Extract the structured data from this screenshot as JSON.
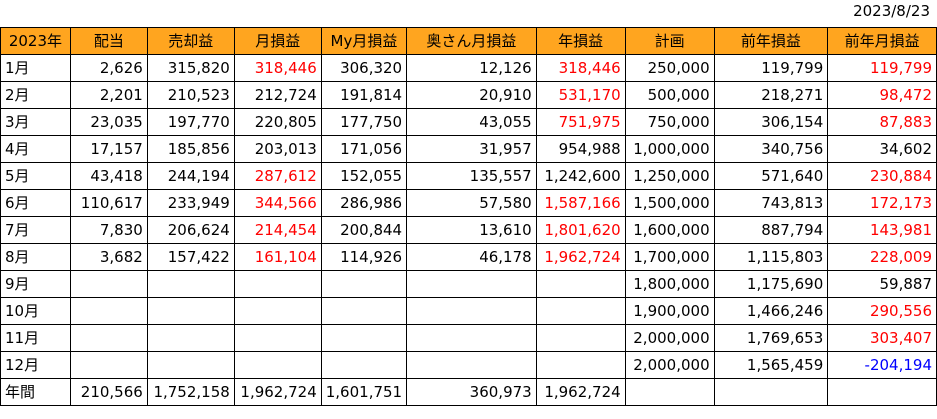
{
  "date": "2023/8/23",
  "headers": [
    "2023年",
    "配当",
    "売却益",
    "月損益",
    "My月損益",
    "奥さん月損益",
    "年損益",
    "計画",
    "前年損益",
    "前年月損益"
  ],
  "rows": [
    {
      "month": "1月",
      "cells": [
        "2,626",
        "315,820",
        "318,446",
        "306,320",
        "12,126",
        "318,446",
        "250,000",
        "119,799",
        "119,799"
      ],
      "red": [
        2,
        5,
        8
      ]
    },
    {
      "month": "2月",
      "cells": [
        "2,201",
        "210,523",
        "212,724",
        "191,814",
        "20,910",
        "531,170",
        "500,000",
        "218,271",
        "98,472"
      ],
      "red": [
        5,
        8
      ]
    },
    {
      "month": "3月",
      "cells": [
        "23,035",
        "197,770",
        "220,805",
        "177,750",
        "43,055",
        "751,975",
        "750,000",
        "306,154",
        "87,883"
      ],
      "red": [
        5,
        8
      ]
    },
    {
      "month": "4月",
      "cells": [
        "17,157",
        "185,856",
        "203,013",
        "171,056",
        "31,957",
        "954,988",
        "1,000,000",
        "340,756",
        "34,602"
      ],
      "red": []
    },
    {
      "month": "5月",
      "cells": [
        "43,418",
        "244,194",
        "287,612",
        "152,055",
        "135,557",
        "1,242,600",
        "1,250,000",
        "571,640",
        "230,884"
      ],
      "red": [
        2,
        8
      ]
    },
    {
      "month": "6月",
      "cells": [
        "110,617",
        "233,949",
        "344,566",
        "286,986",
        "57,580",
        "1,587,166",
        "1,500,000",
        "743,813",
        "172,173"
      ],
      "red": [
        2,
        5,
        8
      ]
    },
    {
      "month": "7月",
      "cells": [
        "7,830",
        "206,624",
        "214,454",
        "200,844",
        "13,610",
        "1,801,620",
        "1,600,000",
        "887,794",
        "143,981"
      ],
      "red": [
        2,
        5,
        8
      ]
    },
    {
      "month": "8月",
      "cells": [
        "3,682",
        "157,422",
        "161,104",
        "114,926",
        "46,178",
        "1,962,724",
        "1,700,000",
        "1,115,803",
        "228,009"
      ],
      "red": [
        2,
        5,
        8
      ]
    },
    {
      "month": "9月",
      "cells": [
        "",
        "",
        "",
        "",
        "",
        "",
        "1,800,000",
        "1,175,690",
        "59,887"
      ],
      "red": []
    },
    {
      "month": "10月",
      "cells": [
        "",
        "",
        "",
        "",
        "",
        "",
        "1,900,000",
        "1,466,246",
        "290,556"
      ],
      "red": [
        8
      ]
    },
    {
      "month": "11月",
      "cells": [
        "",
        "",
        "",
        "",
        "",
        "",
        "2,000,000",
        "1,769,653",
        "303,407"
      ],
      "red": [
        8
      ]
    },
    {
      "month": "12月",
      "cells": [
        "",
        "",
        "",
        "",
        "",
        "",
        "2,000,000",
        "1,565,459",
        "-204,194"
      ],
      "red": [],
      "blue": [
        8
      ]
    },
    {
      "month": "年間",
      "cells": [
        "210,566",
        "1,752,158",
        "1,962,724",
        "1,601,751",
        "360,973",
        "1,962,724",
        "",
        "",
        ""
      ],
      "red": []
    }
  ],
  "colors": {
    "header_bg": "#ffa51f",
    "gain": "#ff0000",
    "loss": "#0000ff"
  }
}
